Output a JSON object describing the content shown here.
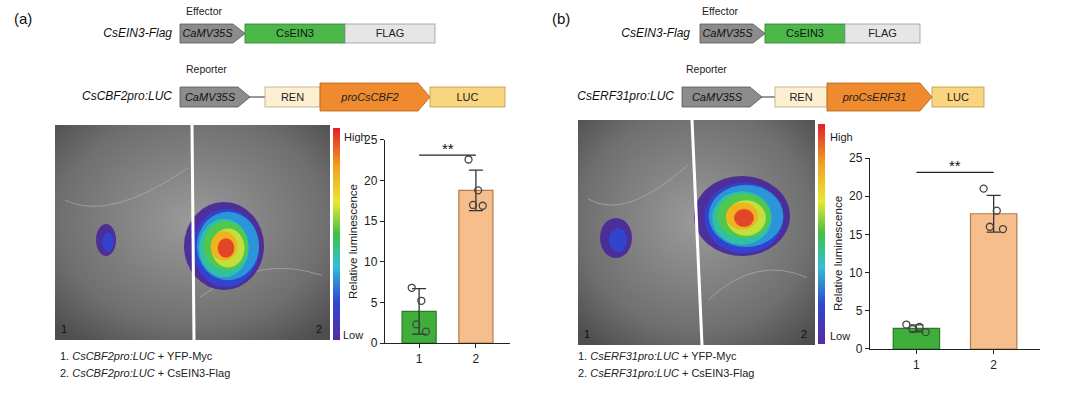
{
  "panels": [
    {
      "label": "(a)",
      "effector": {
        "heading": "Effector",
        "name": "CsEIN3-Flag",
        "parts": [
          "CaMV35S",
          "CsEIN3",
          "FLAG"
        ]
      },
      "reporter": {
        "heading": "Reporter",
        "name": "CsCBF2pro:LUC",
        "parts": [
          "CaMV35S",
          "REN",
          "proCsCBF2",
          "LUC"
        ]
      },
      "image": {
        "scale_high": "High",
        "scale_low": "Low",
        "leaf_labels": [
          "1",
          "2"
        ]
      },
      "legend": [
        {
          "number": "1.",
          "construct": "CsCBF2pro:LUC",
          "rest": "+ YFP-Myc"
        },
        {
          "number": "2.",
          "construct": "CsCBF2pro:LUC",
          "rest": "+ CsEIN3-Flag"
        }
      ]
    },
    {
      "label": "(b)",
      "effector": {
        "heading": "Effector",
        "name": "CsEIN3-Flag",
        "parts": [
          "CaMV35S",
          "CsEIN3",
          "FLAG"
        ]
      },
      "reporter": {
        "heading": "Reporter",
        "name": "CsERF31pro:LUC",
        "parts": [
          "CaMV35S",
          "REN",
          "proCsERF31",
          "LUC"
        ]
      },
      "image": {
        "scale_high": "High",
        "scale_low": "Low",
        "leaf_labels": [
          "1",
          "2"
        ]
      },
      "legend": [
        {
          "number": "1.",
          "construct": "CsERF31pro:LUC",
          "rest": "+ YFP-Myc"
        },
        {
          "number": "2.",
          "construct": "CsERF31pro:LUC",
          "rest": "+ CsEIN3-Flag"
        }
      ]
    }
  ],
  "chart_data": [
    {
      "type": "bar",
      "categories": [
        "1",
        "2"
      ],
      "values": [
        3.9,
        18.8
      ],
      "errors": [
        2.8,
        2.5
      ],
      "points": [
        [
          6.8,
          5.2,
          2.3,
          1.4
        ],
        [
          22.6,
          18.8,
          17.0,
          16.9
        ]
      ],
      "colors": [
        "#3fae3b",
        "#f6be8c"
      ],
      "y_label": "Relative luminescence",
      "ylim": [
        0,
        25
      ],
      "yticks": [
        0,
        5,
        10,
        15,
        20,
        25
      ],
      "significance": "**"
    },
    {
      "type": "bar",
      "categories": [
        "1",
        "2"
      ],
      "values": [
        2.7,
        17.7
      ],
      "errors": [
        0.45,
        2.4
      ],
      "points": [
        [
          3.2,
          2.9,
          2.6,
          2.2
        ],
        [
          21.0,
          18.1,
          16.0,
          15.7
        ]
      ],
      "colors": [
        "#3fae3b",
        "#f6be8c"
      ],
      "y_label": "Relative luminescence",
      "ylim": [
        0,
        25
      ],
      "yticks": [
        0,
        5,
        10,
        15,
        20,
        25
      ],
      "significance": "**"
    }
  ]
}
